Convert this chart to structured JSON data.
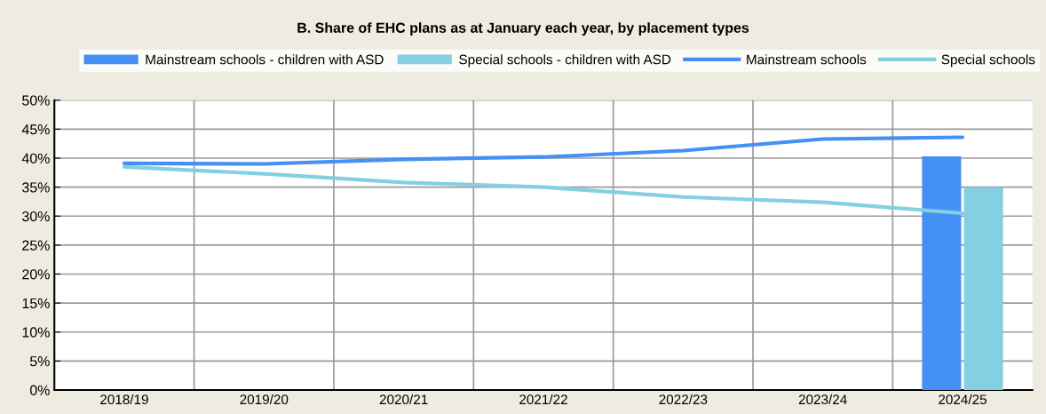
{
  "chart_data": {
    "type": "bar",
    "title": "B. Share of EHC plans as at January each year, by placement types",
    "categories": [
      "2018/19",
      "2019/20",
      "2020/21",
      "2021/22",
      "2022/23",
      "2023/24",
      "2024/25"
    ],
    "series": [
      {
        "name": "Mainstream schools - children with ASD",
        "color": "#4590f5",
        "values": [
          null,
          null,
          null,
          null,
          null,
          null,
          40.3
        ]
      },
      {
        "name": "Special schools - children with ASD",
        "color": "#84d0e2",
        "values": [
          null,
          null,
          null,
          null,
          null,
          null,
          35.0
        ]
      },
      {
        "name": "Mainstream schools",
        "type": "line",
        "color": "#4590f5",
        "values": [
          39.1,
          39.0,
          39.8,
          40.2,
          41.3,
          43.3,
          43.6
        ]
      },
      {
        "name": "Special schools",
        "type": "line",
        "color": "#84d0e2",
        "values": [
          38.5,
          37.3,
          35.8,
          35.0,
          33.3,
          32.4,
          30.5
        ]
      }
    ],
    "ylim": [
      0,
      50
    ],
    "yticks": [
      {
        "value": 0,
        "label": "0%"
      },
      {
        "value": 5,
        "label": "5%"
      },
      {
        "value": 10,
        "label": "10%"
      },
      {
        "value": 15,
        "label": "15%"
      },
      {
        "value": 20,
        "label": "20%"
      },
      {
        "value": 25,
        "label": "25%"
      },
      {
        "value": 30,
        "label": "30%"
      },
      {
        "value": 35,
        "label": "35%"
      },
      {
        "value": 40,
        "label": "40%"
      },
      {
        "value": 45,
        "label": "45%"
      },
      {
        "value": 50,
        "label": "50%"
      }
    ],
    "grid": true,
    "legend": "top",
    "line_style": "solid",
    "marker": "none"
  }
}
